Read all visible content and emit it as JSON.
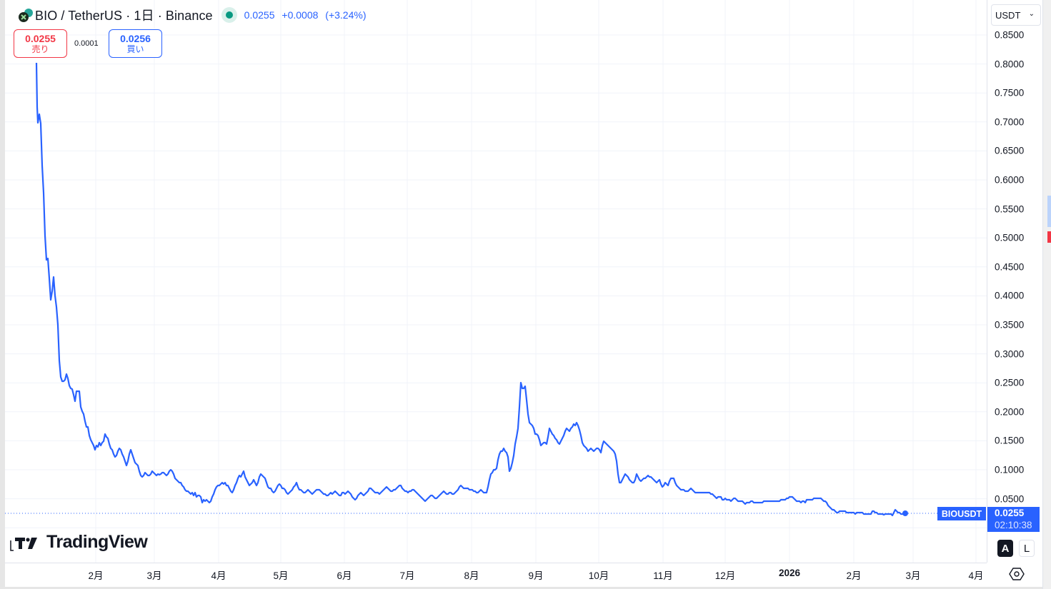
{
  "header": {
    "symbol": "BIO",
    "title": "BIO / TetherUS · 1日 · Binance",
    "last_price": "0.0255",
    "change": "+0.0008",
    "change_pct": "(+3.24%)",
    "market_status": "open"
  },
  "trade": {
    "sell_price": "0.0255",
    "sell_label": "売り",
    "spread": "0.0001",
    "buy_price": "0.0256",
    "buy_label": "買い"
  },
  "price_axis": {
    "currency": "USDT",
    "ticks": [
      "0.8500",
      "0.8000",
      "0.7500",
      "0.7000",
      "0.6500",
      "0.6000",
      "0.5500",
      "0.5000",
      "0.4500",
      "0.4000",
      "0.3500",
      "0.3000",
      "0.2500",
      "0.2000",
      "0.1500",
      "0.1000",
      "0.0500"
    ],
    "symbol_label": "BIOUSDT",
    "last_value": "0.0255",
    "countdown": "02:10:38",
    "auto_label": "A",
    "log_label": "L"
  },
  "time_axis": {
    "ticks": [
      "2月",
      "3月",
      "4月",
      "5月",
      "6月",
      "7月",
      "8月",
      "9月",
      "10月",
      "11月",
      "12月",
      "2026",
      "2月",
      "3月",
      "4月"
    ]
  },
  "branding": {
    "logo_text": "TradingView"
  },
  "colors": {
    "line": "#2962ff",
    "sell": "#f23645",
    "buy": "#2962ff",
    "live": "#089981",
    "grid": "#f0f3fa"
  },
  "chart_data": {
    "type": "line",
    "title": "BIO / TetherUS · 1日 · Binance",
    "xlabel": "",
    "ylabel": "USDT",
    "ylim": [
      0.0,
      0.87
    ],
    "grid": true,
    "legend": "none",
    "x": [
      "2025-01-03",
      "2025-01-05",
      "2025-01-06",
      "2025-01-08",
      "2025-01-10",
      "2025-01-12",
      "2025-01-14",
      "2025-01-16",
      "2025-01-18",
      "2025-01-20",
      "2025-01-23",
      "2025-01-25",
      "2025-01-28",
      "2025-02-01",
      "2025-02-05",
      "2025-02-10",
      "2025-02-15",
      "2025-02-20",
      "2025-02-25",
      "2025-03-01",
      "2025-03-05",
      "2025-03-10",
      "2025-03-15",
      "2025-03-20",
      "2025-03-25",
      "2025-04-01",
      "2025-04-07",
      "2025-04-15",
      "2025-04-22",
      "2025-05-01",
      "2025-05-08",
      "2025-05-15",
      "2025-05-22",
      "2025-06-01",
      "2025-06-10",
      "2025-06-20",
      "2025-07-01",
      "2025-07-10",
      "2025-07-20",
      "2025-08-01",
      "2025-08-07",
      "2025-08-15",
      "2025-08-20",
      "2025-08-23",
      "2025-08-26",
      "2025-09-01",
      "2025-09-08",
      "2025-09-15",
      "2025-09-22",
      "2025-09-28",
      "2025-10-01",
      "2025-10-08",
      "2025-10-11",
      "2025-10-15",
      "2025-10-22",
      "2025-11-01",
      "2025-11-10",
      "2025-11-20",
      "2025-12-01",
      "2025-12-10",
      "2025-12-20",
      "2026-01-01",
      "2026-01-10",
      "2026-01-20",
      "2026-01-28",
      "2026-02-05",
      "2026-02-15",
      "2026-02-22",
      "2026-02-27"
    ],
    "series": [
      {
        "name": "BIOUSDT",
        "values": [
          0.85,
          0.7,
          0.74,
          0.62,
          0.46,
          0.39,
          0.435,
          0.39,
          0.26,
          0.265,
          0.23,
          0.21,
          0.235,
          0.16,
          0.13,
          0.14,
          0.16,
          0.13,
          0.115,
          0.135,
          0.105,
          0.09,
          0.085,
          0.09,
          0.095,
          0.1,
          0.07,
          0.058,
          0.05,
          0.075,
          0.065,
          0.09,
          0.08,
          0.065,
          0.055,
          0.05,
          0.06,
          0.07,
          0.065,
          0.06,
          0.11,
          0.13,
          0.17,
          0.25,
          0.24,
          0.17,
          0.15,
          0.17,
          0.16,
          0.18,
          0.15,
          0.135,
          0.15,
          0.13,
          0.09,
          0.09,
          0.08,
          0.07,
          0.06,
          0.05,
          0.045,
          0.045,
          0.05,
          0.045,
          0.05,
          0.035,
          0.03,
          0.028,
          0.0255
        ]
      }
    ],
    "last_price": 0.0255
  }
}
